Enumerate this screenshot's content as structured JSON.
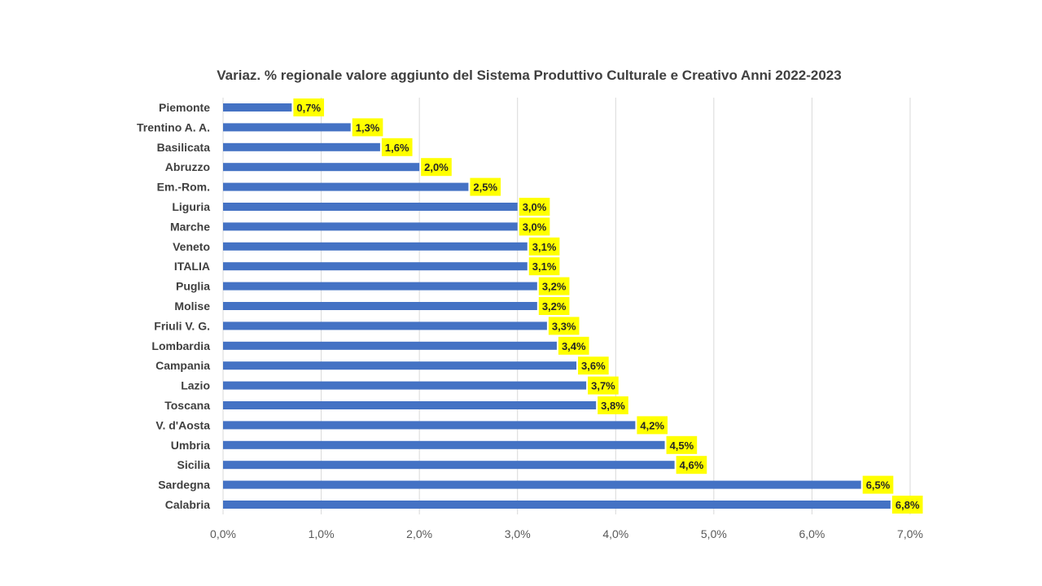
{
  "chart_data": {
    "type": "bar",
    "orientation": "horizontal",
    "title": "Variaz. % regionale valore aggiunto del Sistema Produttivo Culturale e Creativo  Anni 2022-2023",
    "xlabel": "",
    "ylabel": "",
    "categories": [
      "Piemonte",
      "Trentino A. A.",
      "Basilicata",
      "Abruzzo",
      "Em.-Rom.",
      "Liguria",
      "Marche",
      "Veneto",
      "ITALIA",
      "Puglia",
      "Molise",
      "Friuli V. G.",
      "Lombardia",
      "Campania",
      "Lazio",
      "Toscana",
      "V. d'Aosta",
      "Umbria",
      "Sicilia",
      "Sardegna",
      "Calabria"
    ],
    "values": [
      0.7,
      1.3,
      1.6,
      2.0,
      2.5,
      3.0,
      3.0,
      3.1,
      3.1,
      3.2,
      3.2,
      3.3,
      3.4,
      3.6,
      3.7,
      3.8,
      4.2,
      4.5,
      4.6,
      6.5,
      6.8
    ],
    "data_labels": [
      "0,7%",
      "1,3%",
      "1,6%",
      "2,0%",
      "2,5%",
      "3,0%",
      "3,0%",
      "3,1%",
      "3,1%",
      "3,2%",
      "3,2%",
      "3,3%",
      "3,4%",
      "3,6%",
      "3,7%",
      "3,8%",
      "4,2%",
      "4,5%",
      "4,6%",
      "6,5%",
      "6,8%"
    ],
    "xlim": [
      0,
      7
    ],
    "xticks": [
      0,
      1,
      2,
      3,
      4,
      5,
      6,
      7
    ],
    "xtick_labels": [
      "0,0%",
      "1,0%",
      "2,0%",
      "3,0%",
      "4,0%",
      "5,0%",
      "6,0%",
      "7,0%"
    ],
    "grid": true,
    "legend": "none",
    "colors": {
      "bar": "#4472c4",
      "label_background": "#ffff00",
      "gridline": "#d9d9d9"
    }
  }
}
